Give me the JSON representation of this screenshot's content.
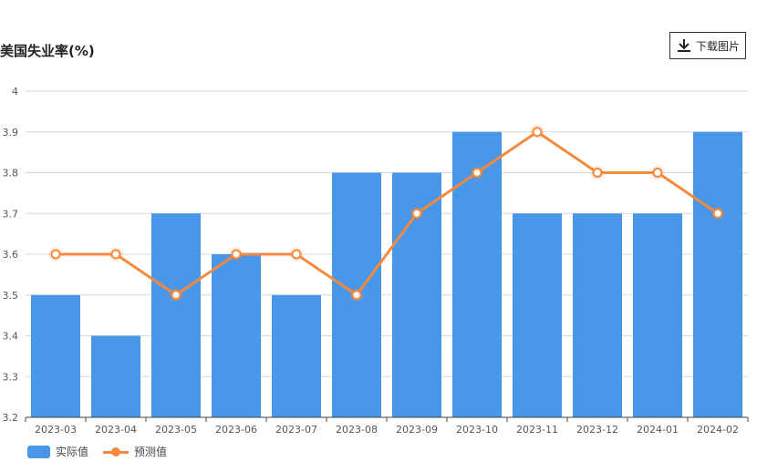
{
  "title": "美国失业率(%)",
  "download_label": "下载图片",
  "colors": {
    "actual": "#4897e8",
    "forecast": "#f5893d",
    "grid": "#d9d9d9"
  },
  "chart_data": {
    "type": "bar",
    "title": "美国失业率(%)",
    "categories": [
      "2023-03",
      "2023-04",
      "2023-05",
      "2023-06",
      "2023-07",
      "2023-08",
      "2023-09",
      "2023-10",
      "2023-11",
      "2023-12",
      "2024-01",
      "2024-02"
    ],
    "series": [
      {
        "name": "实际值",
        "type": "bar",
        "values": [
          3.5,
          3.4,
          3.7,
          3.6,
          3.5,
          3.8,
          3.8,
          3.9,
          3.7,
          3.7,
          3.7,
          3.9
        ]
      },
      {
        "name": "预测值",
        "type": "line",
        "values": [
          3.6,
          3.6,
          3.5,
          3.6,
          3.6,
          3.5,
          3.7,
          3.8,
          3.9,
          3.8,
          3.8,
          3.7
        ]
      }
    ],
    "ylim": [
      3.2,
      4
    ],
    "yticks": [
      "3.2",
      "3.3",
      "3.4",
      "3.5",
      "3.6",
      "3.7",
      "3.8",
      "3.9",
      "4"
    ],
    "grid": true,
    "legend": "bottom-left"
  }
}
